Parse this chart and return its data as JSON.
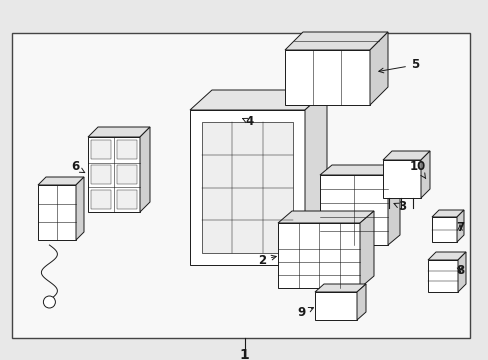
{
  "bg_color": "#e8e8e8",
  "box_bg": "#f5f5f5",
  "line_color": "#1a1a1a",
  "fig_width": 4.89,
  "fig_height": 3.6,
  "dpi": 100,
  "border_lw": 1.0,
  "component_lw": 0.7
}
